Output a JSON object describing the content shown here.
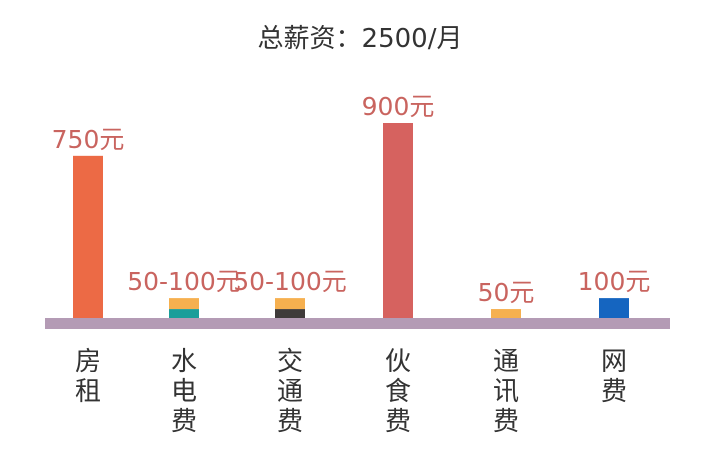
{
  "chart_data": {
    "type": "bar",
    "title": "总薪资：2500/月",
    "categories": [
      "房租",
      "水电费",
      "交通费",
      "伙食费",
      "通讯费",
      "网费"
    ],
    "values": [
      750,
      100,
      100,
      900,
      50,
      100
    ],
    "value_labels": [
      "750元",
      "50-100元",
      "50-100元",
      "900元",
      "50元",
      "100元"
    ],
    "ranges": [
      null,
      [
        50,
        100
      ],
      [
        50,
        100
      ],
      null,
      null,
      null
    ],
    "colors": [
      "#ec6a45",
      "#1a9e9a",
      "#3f3b3a",
      "#d6625f",
      "#f6b04f",
      "#1565c0"
    ],
    "range_top_color": "#f6b04f",
    "baseline_color": "#b49bb5",
    "ylim": [
      0,
      900
    ],
    "xlabel": "",
    "ylabel": ""
  }
}
